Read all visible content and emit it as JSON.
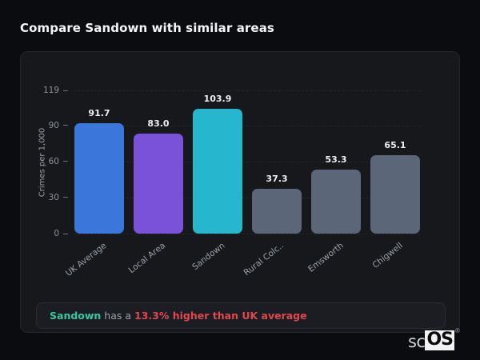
{
  "title": "Compare Sandown with similar areas",
  "chart_data": {
    "type": "bar",
    "categories": [
      "UK Average",
      "Local Area",
      "Sandown",
      "Rural Colc..",
      "Emsworth",
      "Chigwell"
    ],
    "values": [
      91.7,
      83.0,
      103.9,
      37.3,
      53.3,
      65.1
    ],
    "value_labels": [
      "91.7",
      "83.0",
      "103.9",
      "37.3",
      "53.3",
      "65.1"
    ],
    "bar_colors": [
      "#3b76db",
      "#7a52d9",
      "#26b7ce",
      "#5b6779",
      "#5b6779",
      "#5b6779"
    ],
    "title": "",
    "xlabel": "",
    "ylabel": "Crimes per 1,000",
    "ylim": [
      0,
      119
    ],
    "yticks": [
      0,
      30,
      60,
      90,
      119
    ],
    "grid": "horizontal-dashed",
    "legend": "none",
    "x_label_rotation_deg": -38
  },
  "note": {
    "area": "Sandown",
    "middle": " has a ",
    "highlight": "13.3% higher than UK average",
    "area_color": "#35c9a1",
    "highlight_color": "#e0484f"
  },
  "logo": {
    "prefix": "sc",
    "suffix": "OS",
    "registered": "®"
  }
}
